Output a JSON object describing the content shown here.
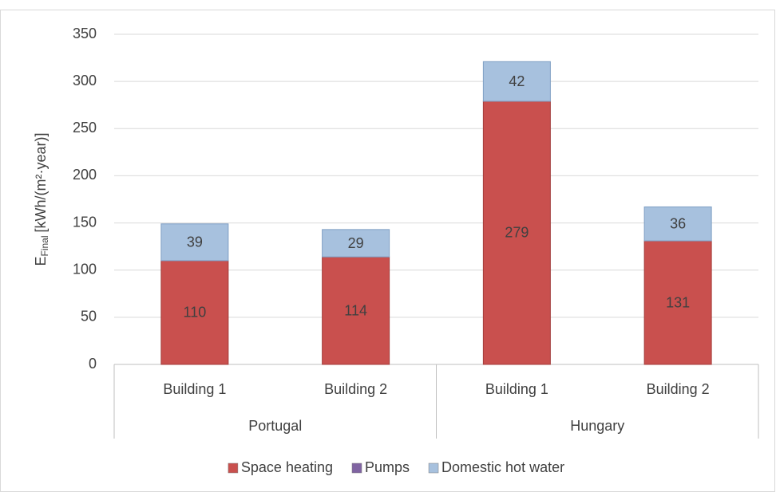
{
  "chart_data": {
    "type": "stacked_bar",
    "y_label": {
      "main": "E",
      "subscript": "Final",
      "unit": "[kWh/(m²·year)]"
    },
    "categories": [
      "Building 1",
      "Building 2",
      "Building 1",
      "Building 2"
    ],
    "groups": [
      {
        "name": "Portugal",
        "span": 2
      },
      {
        "name": "Hungary",
        "span": 2
      }
    ],
    "series": [
      {
        "name": "Space heating",
        "color": "#c9504e",
        "values": [
          110,
          114,
          279,
          131
        ],
        "labels": true
      },
      {
        "name": "Pumps",
        "color": "#8064a2",
        "values": [
          0,
          0,
          0,
          0
        ],
        "labels": false
      },
      {
        "name": "Domestic hot water",
        "color": "#a7c1de",
        "values": [
          39,
          29,
          42,
          36
        ],
        "labels": true
      }
    ],
    "ylim": [
      0,
      350
    ],
    "yticks": [
      0,
      50,
      100,
      150,
      200,
      250,
      300,
      350
    ],
    "grid": true,
    "legend": "bottom"
  }
}
